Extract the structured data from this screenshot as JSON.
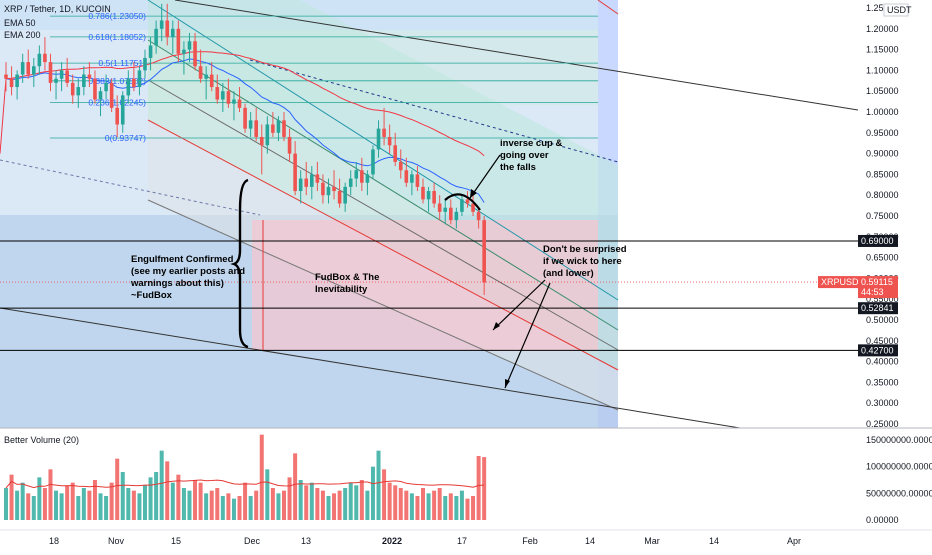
{
  "header": {
    "symbol_line": "XRP / Tether, 1D, KUCOIN",
    "indicator_1": "EMA 50",
    "indicator_2": "EMA 200",
    "volume_title": "Better Volume (20)"
  },
  "price_axis": {
    "currency": "USDT",
    "ticks": [
      "1.25000",
      "1.20000",
      "1.15000",
      "1.10000",
      "1.05000",
      "1.00000",
      "0.95000",
      "0.90000",
      "0.85000",
      "0.80000",
      "0.75000",
      "0.70000",
      "0.65000",
      "0.60000",
      "0.55000",
      "0.50000",
      "0.45000",
      "0.40000",
      "0.35000",
      "0.30000",
      "0.25000"
    ],
    "price_levels": [
      {
        "label": "0.69000",
        "value": 0.69
      },
      {
        "label": "0.52841",
        "value": 0.52841
      },
      {
        "label": "0.42700",
        "value": 0.427
      }
    ],
    "last_price": {
      "symbol": "XRPUSDT",
      "price": "0.59115",
      "countdown": "44:53",
      "value": 0.59115
    }
  },
  "volume_axis": {
    "ticks": [
      "150000000.00000",
      "100000000.00000",
      "50000000.00000",
      "0.00000"
    ]
  },
  "time_axis": {
    "labels": [
      "18",
      "Nov",
      "15",
      "Dec",
      "13",
      "2022",
      "17",
      "Feb",
      "14",
      "Mar",
      "14",
      "Apr"
    ]
  },
  "fib_levels": [
    {
      "label": "0.786(1.23050)",
      "value": 1.2305
    },
    {
      "label": "0.618(1.18052)",
      "value": 1.18052
    },
    {
      "label": "0.5(1.11751)",
      "value": 1.11751
    },
    {
      "label": "0.382(1.07502)",
      "value": 1.07502
    },
    {
      "label": "0.236(1.02245)",
      "value": 1.02245
    },
    {
      "label": "0(0.93747)",
      "value": 0.93747
    }
  ],
  "annotations": {
    "cup_note": [
      "inverse cup &",
      "going over",
      "the falls"
    ],
    "wick_note": [
      "Don't be surprised",
      "if we wick to here",
      "(and lower)"
    ],
    "engulf_note": [
      "Engulfment Confirmed",
      "(see my earlier posts and",
      "warnings about this)",
      "~FudBox"
    ],
    "box_note": [
      "FudBox & The",
      "Inevitability"
    ]
  },
  "colors": {
    "up_candle": "#26a69a",
    "down_candle": "#ef5350",
    "ema50": "#2962ff",
    "ema200": "#f23645",
    "volume_up": "#26a69a",
    "volume_down": "#ef5350",
    "channel_fill": "#b2dfdb",
    "box_fill": "#f8bbd0"
  },
  "chart_data": {
    "type": "candlestick",
    "title": "XRP / Tether, 1D, KUCOIN",
    "y_range": [
      0.25,
      1.26
    ],
    "volume_range": [
      0,
      165000000
    ],
    "ohlc": [
      [
        1.09,
        1.12,
        1.05,
        1.08
      ],
      [
        1.08,
        1.11,
        1.04,
        1.06
      ],
      [
        1.06,
        1.1,
        1.03,
        1.09
      ],
      [
        1.09,
        1.14,
        1.07,
        1.12
      ],
      [
        1.12,
        1.15,
        1.08,
        1.09
      ],
      [
        1.09,
        1.13,
        1.06,
        1.11
      ],
      [
        1.11,
        1.16,
        1.09,
        1.14
      ],
      [
        1.14,
        1.18,
        1.1,
        1.12
      ],
      [
        1.12,
        1.14,
        1.05,
        1.07
      ],
      [
        1.07,
        1.1,
        1.03,
        1.08
      ],
      [
        1.08,
        1.12,
        1.05,
        1.1
      ],
      [
        1.1,
        1.13,
        1.06,
        1.07
      ],
      [
        1.07,
        1.09,
        1.02,
        1.04
      ],
      [
        1.04,
        1.08,
        1.01,
        1.06
      ],
      [
        1.06,
        1.11,
        1.04,
        1.09
      ],
      [
        1.09,
        1.12,
        1.06,
        1.08
      ],
      [
        1.08,
        1.1,
        1.02,
        1.03
      ],
      [
        1.03,
        1.06,
        0.99,
        1.05
      ],
      [
        1.05,
        1.09,
        1.03,
        1.07
      ],
      [
        1.07,
        1.08,
        1.0,
        1.01
      ],
      [
        1.01,
        1.04,
        0.94,
        0.97
      ],
      [
        0.97,
        1.05,
        0.95,
        1.04
      ],
      [
        1.04,
        1.1,
        1.02,
        1.08
      ],
      [
        1.08,
        1.12,
        1.05,
        1.06
      ],
      [
        1.06,
        1.11,
        1.04,
        1.1
      ],
      [
        1.1,
        1.15,
        1.08,
        1.13
      ],
      [
        1.13,
        1.18,
        1.1,
        1.16
      ],
      [
        1.16,
        1.22,
        1.14,
        1.2
      ],
      [
        1.2,
        1.26,
        1.17,
        1.22
      ],
      [
        1.22,
        1.26,
        1.16,
        1.18
      ],
      [
        1.18,
        1.22,
        1.14,
        1.2
      ],
      [
        1.2,
        1.22,
        1.12,
        1.14
      ],
      [
        1.14,
        1.17,
        1.09,
        1.15
      ],
      [
        1.15,
        1.19,
        1.12,
        1.17
      ],
      [
        1.17,
        1.19,
        1.1,
        1.11
      ],
      [
        1.11,
        1.15,
        1.07,
        1.08
      ],
      [
        1.08,
        1.11,
        1.03,
        1.09
      ],
      [
        1.09,
        1.12,
        1.05,
        1.06
      ],
      [
        1.06,
        1.09,
        1.02,
        1.03
      ],
      [
        1.03,
        1.07,
        1.0,
        1.05
      ],
      [
        1.05,
        1.08,
        1.01,
        1.02
      ],
      [
        1.02,
        1.05,
        0.98,
        1.03
      ],
      [
        1.03,
        1.06,
        1.0,
        1.01
      ],
      [
        1.01,
        1.02,
        0.95,
        0.96
      ],
      [
        0.96,
        1.0,
        0.94,
        0.98
      ],
      [
        0.98,
        1.01,
        0.93,
        0.94
      ],
      [
        0.94,
        0.97,
        0.85,
        0.92
      ],
      [
        0.92,
        0.99,
        0.9,
        0.97
      ],
      [
        0.97,
        1.0,
        0.94,
        0.95
      ],
      [
        0.95,
        0.99,
        0.93,
        0.98
      ],
      [
        0.98,
        1.0,
        0.93,
        0.94
      ],
      [
        0.94,
        0.96,
        0.88,
        0.9
      ],
      [
        0.9,
        0.93,
        0.8,
        0.81
      ],
      [
        0.81,
        0.86,
        0.78,
        0.84
      ],
      [
        0.84,
        0.88,
        0.8,
        0.82
      ],
      [
        0.82,
        0.87,
        0.79,
        0.85
      ],
      [
        0.85,
        0.88,
        0.81,
        0.83
      ],
      [
        0.83,
        0.85,
        0.78,
        0.8
      ],
      [
        0.8,
        0.84,
        0.78,
        0.82
      ],
      [
        0.82,
        0.86,
        0.79,
        0.81
      ],
      [
        0.81,
        0.84,
        0.77,
        0.78
      ],
      [
        0.78,
        0.83,
        0.76,
        0.82
      ],
      [
        0.82,
        0.86,
        0.8,
        0.84
      ],
      [
        0.84,
        0.88,
        0.82,
        0.86
      ],
      [
        0.86,
        0.89,
        0.81,
        0.83
      ],
      [
        0.83,
        0.86,
        0.8,
        0.85
      ],
      [
        0.85,
        0.92,
        0.84,
        0.91
      ],
      [
        0.91,
        0.98,
        0.89,
        0.96
      ],
      [
        0.96,
        1.01,
        0.92,
        0.94
      ],
      [
        0.94,
        0.97,
        0.9,
        0.92
      ],
      [
        0.92,
        0.95,
        0.87,
        0.88
      ],
      [
        0.88,
        0.91,
        0.84,
        0.86
      ],
      [
        0.86,
        0.89,
        0.82,
        0.83
      ],
      [
        0.83,
        0.86,
        0.8,
        0.85
      ],
      [
        0.85,
        0.87,
        0.81,
        0.82
      ],
      [
        0.82,
        0.84,
        0.78,
        0.79
      ],
      [
        0.79,
        0.82,
        0.76,
        0.81
      ],
      [
        0.81,
        0.83,
        0.77,
        0.78
      ],
      [
        0.78,
        0.8,
        0.74,
        0.76
      ],
      [
        0.76,
        0.79,
        0.73,
        0.77
      ],
      [
        0.77,
        0.79,
        0.73,
        0.74
      ],
      [
        0.74,
        0.77,
        0.72,
        0.76
      ],
      [
        0.76,
        0.8,
        0.75,
        0.79
      ],
      [
        0.79,
        0.81,
        0.77,
        0.78
      ],
      [
        0.78,
        0.8,
        0.75,
        0.76
      ],
      [
        0.76,
        0.77,
        0.72,
        0.74
      ],
      [
        0.74,
        0.75,
        0.56,
        0.59
      ]
    ],
    "volume": [
      [
        60,
        1
      ],
      [
        85,
        0
      ],
      [
        55,
        1
      ],
      [
        70,
        1
      ],
      [
        50,
        0
      ],
      [
        45,
        1
      ],
      [
        80,
        1
      ],
      [
        60,
        0
      ],
      [
        95,
        0
      ],
      [
        55,
        1
      ],
      [
        50,
        1
      ],
      [
        65,
        0
      ],
      [
        70,
        0
      ],
      [
        45,
        1
      ],
      [
        60,
        1
      ],
      [
        55,
        0
      ],
      [
        75,
        0
      ],
      [
        50,
        1
      ],
      [
        45,
        1
      ],
      [
        70,
        0
      ],
      [
        115,
        0
      ],
      [
        90,
        1
      ],
      [
        60,
        1
      ],
      [
        55,
        0
      ],
      [
        50,
        1
      ],
      [
        65,
        1
      ],
      [
        80,
        1
      ],
      [
        90,
        1
      ],
      [
        130,
        1
      ],
      [
        110,
        0
      ],
      [
        70,
        1
      ],
      [
        85,
        0
      ],
      [
        60,
        1
      ],
      [
        55,
        1
      ],
      [
        75,
        0
      ],
      [
        70,
        0
      ],
      [
        50,
        1
      ],
      [
        55,
        0
      ],
      [
        60,
        0
      ],
      [
        45,
        1
      ],
      [
        50,
        0
      ],
      [
        40,
        1
      ],
      [
        45,
        0
      ],
      [
        70,
        0
      ],
      [
        45,
        1
      ],
      [
        55,
        0
      ],
      [
        160,
        0
      ],
      [
        95,
        1
      ],
      [
        60,
        0
      ],
      [
        50,
        1
      ],
      [
        55,
        0
      ],
      [
        80,
        0
      ],
      [
        125,
        0
      ],
      [
        75,
        1
      ],
      [
        65,
        0
      ],
      [
        70,
        1
      ],
      [
        60,
        0
      ],
      [
        55,
        0
      ],
      [
        45,
        1
      ],
      [
        50,
        0
      ],
      [
        55,
        0
      ],
      [
        60,
        1
      ],
      [
        70,
        1
      ],
      [
        65,
        1
      ],
      [
        75,
        0
      ],
      [
        55,
        1
      ],
      [
        100,
        1
      ],
      [
        130,
        1
      ],
      [
        95,
        0
      ],
      [
        70,
        0
      ],
      [
        65,
        0
      ],
      [
        60,
        0
      ],
      [
        55,
        0
      ],
      [
        50,
        1
      ],
      [
        45,
        0
      ],
      [
        60,
        0
      ],
      [
        50,
        1
      ],
      [
        55,
        0
      ],
      [
        60,
        0
      ],
      [
        45,
        1
      ],
      [
        50,
        0
      ],
      [
        45,
        1
      ],
      [
        55,
        1
      ],
      [
        40,
        0
      ],
      [
        45,
        0
      ],
      [
        120,
        0
      ],
      [
        118,
        0
      ]
    ]
  }
}
